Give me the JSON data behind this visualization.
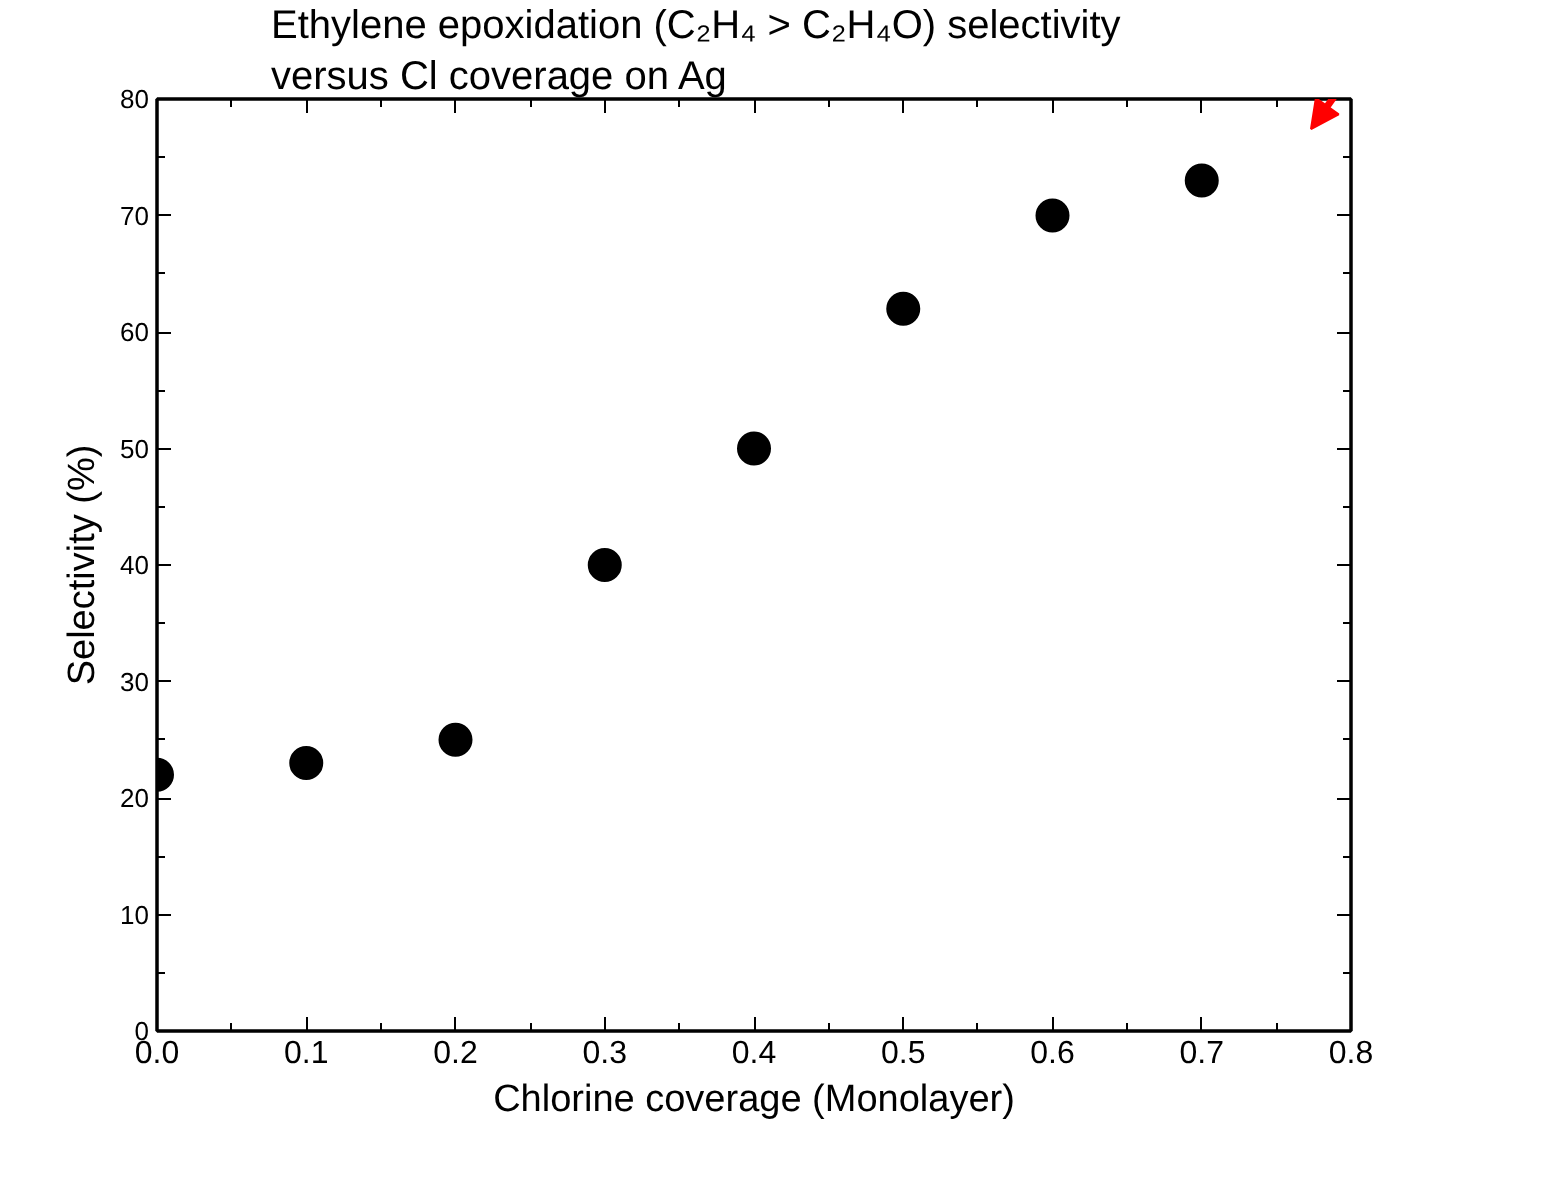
{
  "chart_data": {
    "type": "scatter",
    "title": "Ethylene epoxidation (C₂H₄ > C₂H₄O) selectivity\nversus Cl coverage on Ag",
    "xlabel": "Chlorine coverage (Monolayer)",
    "ylabel": "Selectivity (%)",
    "x": [
      0.0,
      0.1,
      0.2,
      0.3,
      0.4,
      0.5,
      0.6,
      0.7
    ],
    "series": [
      {
        "color": "#000000",
        "values": [
          22,
          23,
          25,
          40,
          50,
          62,
          70,
          73
        ]
      }
    ],
    "xlim": [
      0.0,
      0.8
    ],
    "xticks": [
      {
        "value": 0.0,
        "label": "0.0"
      },
      {
        "value": 0.1,
        "label": "0.1"
      },
      {
        "value": 0.2,
        "label": "0.2"
      },
      {
        "value": 0.3,
        "label": "0.3"
      },
      {
        "value": 0.4,
        "label": "0.4"
      },
      {
        "value": 0.5,
        "label": "0.5"
      },
      {
        "value": 0.6,
        "label": "0.6"
      },
      {
        "value": 0.7,
        "label": "0.7"
      },
      {
        "value": 0.8,
        "label": "0.8"
      }
    ],
    "ylim": [
      0,
      80
    ],
    "yticks": [
      0,
      10,
      20,
      30,
      40,
      50,
      60,
      70,
      80
    ],
    "grid": false,
    "marker": "circle"
  }
}
